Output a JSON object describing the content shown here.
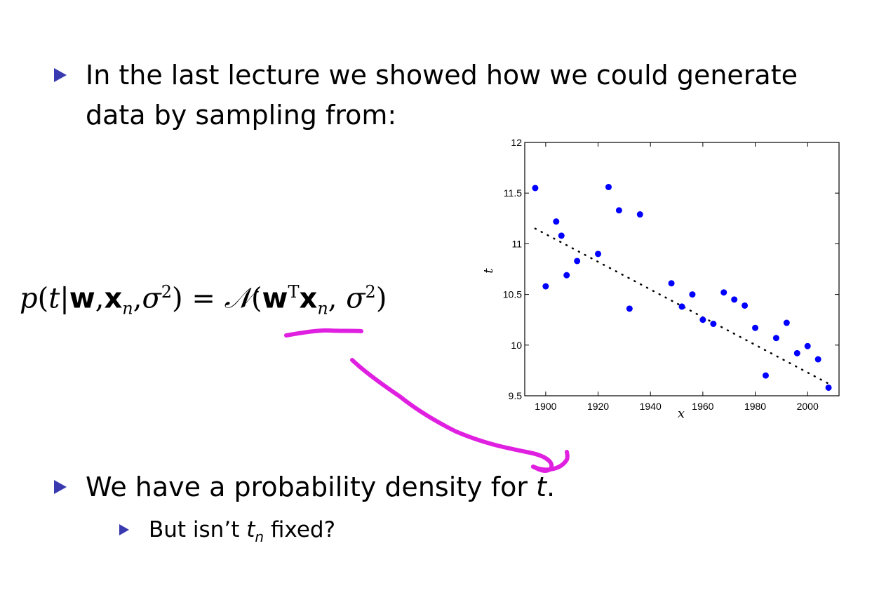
{
  "bullets": {
    "first_line1": "In the last lecture we showed how we could generate",
    "first_line2": "data by sampling from:",
    "second": "We have a probability density for",
    "second_var": "t",
    "second_end": ".",
    "sub_pre": "But isn’t",
    "sub_var": "t",
    "sub_subscript": "n",
    "sub_post": "fixed?"
  },
  "equation": {
    "p": "p",
    "open": "(",
    "t": "t",
    "bar": "|",
    "w": "w",
    "comma1": ",",
    "x": "x",
    "n": "n",
    "comma2": ",",
    "sigma": "σ",
    "two": "2",
    "close_eq": ") = ",
    "N": "𝒩",
    "open2": "(",
    "w2": "w",
    "T": "T",
    "x2": "x",
    "n2": "n",
    "comma3": ", ",
    "sigma2": "σ",
    "two2": "2",
    "close2": ")"
  },
  "colors": {
    "bullet": "#3a3ab0",
    "points": "#0000ff",
    "annotation": "#e020e0"
  },
  "chart_data": {
    "type": "scatter",
    "xlabel": "x",
    "ylabel": "t",
    "xlim": [
      1892,
      2012
    ],
    "ylim": [
      9.5,
      12
    ],
    "xticks": [
      "1900",
      "1920",
      "1940",
      "1960",
      "1980",
      "2000"
    ],
    "xtick_values": [
      1900,
      1920,
      1940,
      1960,
      1980,
      2000
    ],
    "yticks": [
      "9.5",
      "10",
      "10.5",
      "11",
      "11.5",
      "12"
    ],
    "ytick_values": [
      9.5,
      10,
      10.5,
      11,
      11.5,
      12
    ],
    "points": [
      [
        1896,
        11.55
      ],
      [
        1900,
        10.58
      ],
      [
        1904,
        11.22
      ],
      [
        1906,
        11.08
      ],
      [
        1908,
        10.69
      ],
      [
        1912,
        10.83
      ],
      [
        1920,
        10.9
      ],
      [
        1924,
        11.56
      ],
      [
        1928,
        11.33
      ],
      [
        1932,
        10.36
      ],
      [
        1936,
        11.29
      ],
      [
        1948,
        10.61
      ],
      [
        1952,
        10.38
      ],
      [
        1956,
        10.5
      ],
      [
        1960,
        10.25
      ],
      [
        1964,
        10.21
      ],
      [
        1968,
        10.52
      ],
      [
        1972,
        10.45
      ],
      [
        1976,
        10.39
      ],
      [
        1980,
        10.17
      ],
      [
        1984,
        9.7
      ],
      [
        1988,
        10.07
      ],
      [
        1992,
        10.22
      ],
      [
        1996,
        9.92
      ],
      [
        2000,
        9.99
      ],
      [
        2004,
        9.86
      ],
      [
        2008,
        9.58
      ]
    ],
    "fit_line": {
      "x": [
        1896,
        2008
      ],
      "y": [
        11.15,
        9.62
      ]
    },
    "grid": false
  }
}
